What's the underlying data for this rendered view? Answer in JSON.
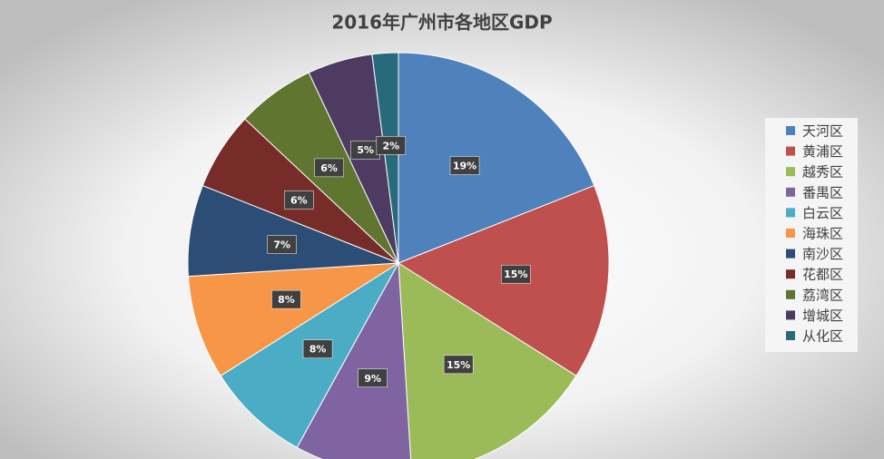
{
  "chart_data": {
    "type": "pie",
    "title": "2016年广州市各地区GDP",
    "categories": [
      "天河区",
      "黄浦区",
      "越秀区",
      "番禺区",
      "白云区",
      "海珠区",
      "南沙区",
      "花都区",
      "荔湾区",
      "增城区",
      "从化区"
    ],
    "values": [
      19,
      15,
      15,
      9,
      8,
      8,
      7,
      6,
      6,
      5,
      2
    ],
    "value_labels": [
      "19%",
      "15%",
      "15%",
      "9%",
      "8%",
      "8%",
      "7%",
      "6%",
      "6%",
      "5%",
      "2%"
    ],
    "colors": [
      "#4f81bd",
      "#c0504d",
      "#9bbb59",
      "#8064a2",
      "#4bacc6",
      "#f79646",
      "#2c4d75",
      "#772c2a",
      "#5f7530",
      "#4d3b62",
      "#276a7c"
    ],
    "legend": "right"
  }
}
